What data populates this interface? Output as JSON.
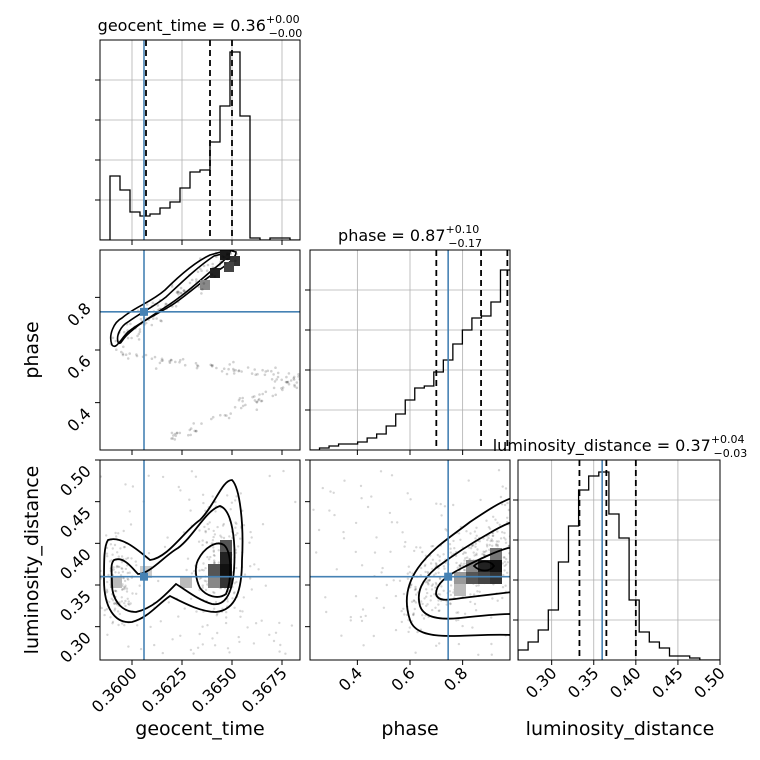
{
  "chart_data": {
    "type": "corner",
    "parameters": [
      "geocent_time",
      "phase",
      "luminosity_distance"
    ],
    "titles": [
      {
        "param": "geocent_time",
        "label": "geocent_time",
        "median": "0.36",
        "plus": "+0.00",
        "minus": "−0.00"
      },
      {
        "param": "phase",
        "label": "phase",
        "median": "0.87",
        "plus": "+0.10",
        "minus": "−0.17"
      },
      {
        "param": "luminosity_distance",
        "label": "luminosity_distance",
        "median": "0.37",
        "plus": "+0.04",
        "minus": "−0.03"
      }
    ],
    "ranges": {
      "geocent_time": [
        0.3584,
        0.3684
      ],
      "phase": [
        0.22,
        0.98
      ],
      "luminosity_distance": [
        0.26,
        0.5
      ]
    },
    "ticks": {
      "geocent_time": [
        "0.3600",
        "0.3625",
        "0.3650",
        "0.3675"
      ],
      "phase": [
        "0.4",
        "0.6",
        "0.8"
      ],
      "luminosity_distance": [
        "0.30",
        "0.35",
        "0.40",
        "0.45",
        "0.50"
      ]
    },
    "truths": {
      "geocent_time": 0.3606,
      "phase": 0.745,
      "luminosity_distance": 0.36
    },
    "quantiles": {
      "geocent_time": [
        0.3607,
        0.3639,
        0.365
      ],
      "phase": [
        0.7,
        0.87,
        0.97
      ],
      "luminosity_distance": [
        0.333,
        0.365,
        0.4
      ]
    },
    "histograms": {
      "geocent_time": [
        0.0,
        0.32,
        0.25,
        0.14,
        0.12,
        0.13,
        0.16,
        0.19,
        0.26,
        0.34,
        0.35,
        0.49,
        0.67,
        0.94,
        0.62,
        0.01,
        0.0,
        0.01,
        0.01,
        0.0
      ],
      "phase": [
        0.0,
        0.01,
        0.02,
        0.03,
        0.03,
        0.04,
        0.06,
        0.08,
        0.12,
        0.18,
        0.25,
        0.31,
        0.32,
        0.39,
        0.45,
        0.53,
        0.6,
        0.66,
        0.67,
        0.74,
        0.9
      ],
      "luminosity_distance": [
        0.05,
        0.09,
        0.15,
        0.25,
        0.49,
        0.67,
        0.85,
        0.92,
        0.94,
        0.73,
        0.61,
        0.3,
        0.14,
        0.09,
        0.06,
        0.02,
        0.02,
        0.01,
        0.0,
        0.0
      ]
    },
    "grid": true
  }
}
